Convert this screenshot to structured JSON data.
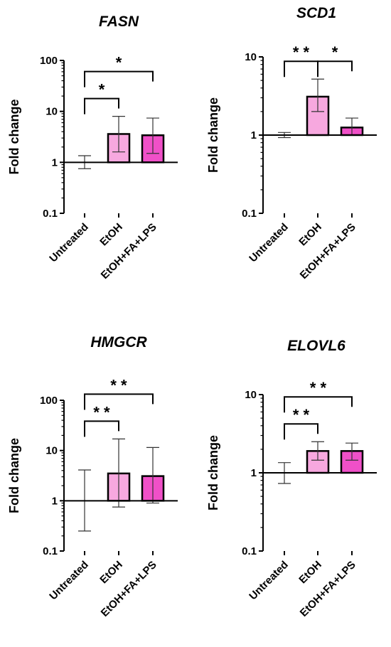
{
  "chart_data": [
    {
      "type": "bar",
      "title": "FASN",
      "ylabel": "Fold change",
      "yscale": "log",
      "ylim": [
        0.1,
        100
      ],
      "yticks": [
        "0.1",
        "1",
        "10",
        "100"
      ],
      "categories": [
        "Untreated",
        "EtOH",
        "EtOH+FA+LPS"
      ],
      "values": [
        1.0,
        3.6,
        3.4
      ],
      "error_low": [
        0.75,
        1.6,
        1.5
      ],
      "error_high": [
        1.35,
        8.0,
        7.4
      ],
      "bar_colors": [
        "#ffffff",
        "#f7a8df",
        "#f050c8"
      ],
      "significance": [
        {
          "from": 0,
          "to": 1,
          "label": "*"
        },
        {
          "from": 0,
          "to": 2,
          "label": "*"
        }
      ]
    },
    {
      "type": "bar",
      "title": "SCD1",
      "ylabel": "Fold change",
      "yscale": "log",
      "ylim": [
        0.1,
        10
      ],
      "yticks": [
        "0.1",
        "1",
        "10"
      ],
      "categories": [
        "Untreated",
        "EtOH",
        "EtOH+FA+LPS"
      ],
      "values": [
        1.0,
        3.1,
        1.25
      ],
      "error_low": [
        0.93,
        2.0,
        1.0
      ],
      "error_high": [
        1.08,
        5.2,
        1.65
      ],
      "bar_colors": [
        "#ffffff",
        "#f7a8df",
        "#f050c8"
      ],
      "significance": [
        {
          "from": 0,
          "to": 1,
          "label": "**"
        },
        {
          "from": 1,
          "to": 2,
          "label": "*"
        }
      ]
    },
    {
      "type": "bar",
      "title": "HMGCR",
      "ylabel": "Fold change",
      "yscale": "log",
      "ylim": [
        0.1,
        100
      ],
      "yticks": [
        "0.1",
        "1",
        "10",
        "100"
      ],
      "categories": [
        "Untreated",
        "EtOH",
        "EtOH+FA+LPS"
      ],
      "values": [
        1.0,
        3.5,
        3.1
      ],
      "error_low": [
        0.25,
        0.75,
        0.9
      ],
      "error_high": [
        4.1,
        17.0,
        11.5
      ],
      "bar_colors": [
        "#ffffff",
        "#f7a8df",
        "#f050c8"
      ],
      "significance": [
        {
          "from": 0,
          "to": 1,
          "label": "**"
        },
        {
          "from": 0,
          "to": 2,
          "label": "**"
        }
      ]
    },
    {
      "type": "bar",
      "title": "ELOVL6",
      "ylabel": "Fold change",
      "yscale": "log",
      "ylim": [
        0.1,
        10
      ],
      "yticks": [
        "0.1",
        "1",
        "10"
      ],
      "categories": [
        "Untreated",
        "EtOH",
        "EtOH+FA+LPS"
      ],
      "values": [
        1.0,
        1.9,
        1.9
      ],
      "error_low": [
        0.73,
        1.45,
        1.45
      ],
      "error_high": [
        1.35,
        2.5,
        2.4
      ],
      "bar_colors": [
        "#ffffff",
        "#f7a8df",
        "#f050c8"
      ],
      "significance": [
        {
          "from": 0,
          "to": 1,
          "label": "**"
        },
        {
          "from": 0,
          "to": 2,
          "label": "**"
        }
      ]
    }
  ]
}
